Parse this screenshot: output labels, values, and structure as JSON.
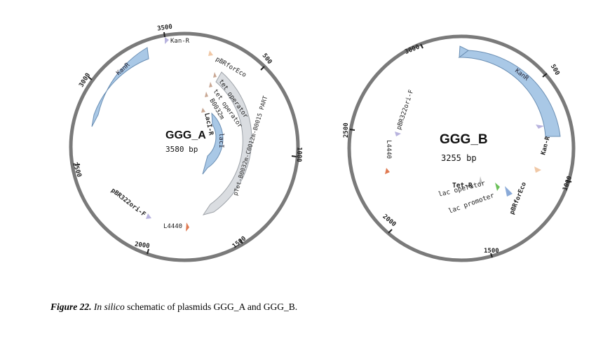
{
  "plasmid_a": {
    "name": "GGG_A",
    "size": "3580 bp",
    "ticks": [
      "3500",
      "500",
      "1000",
      "1500",
      "2000",
      "2500",
      "3000"
    ],
    "features": {
      "kan_r_primer": "Kan-R",
      "kanr": "KanR",
      "pbrforeco": "pBRforEco",
      "tet_operator_1": "tet operator",
      "tet_operator_2": "tet operator",
      "b0032m": "B0032m",
      "laci_r": "LacI-R",
      "laci": "lacI",
      "insert": "pTet-B0032m-C0012m-B0015 PART",
      "pbr322ori_f": "pBR322ori-F",
      "l4440": "L4440"
    }
  },
  "plasmid_b": {
    "name": "GGG_B",
    "size": "3255 bp",
    "ticks": [
      "3000",
      "500",
      "1000",
      "1500",
      "2000",
      "2500"
    ],
    "features": {
      "kanr": "KanR",
      "kan_r_primer": "Kan-R",
      "pbrforeco": "pBRforEco",
      "pbr322ori_f": "pBR322ori-F",
      "l4440": "L4440",
      "tet_r": "Tet-R",
      "lac_operator": "lac operator",
      "lac_promoter": "lac promoter"
    }
  },
  "caption": {
    "label": "Figure 22.",
    "italic": "In silico",
    "text": " schematic of plasmids GGG_A and GGG_B."
  },
  "colors": {
    "ring": "#7a7a7a",
    "kanr": "#a9c8e6",
    "laci": "#a9c8e6",
    "insert": "#dadde1",
    "primer_purple": "#b8b3de",
    "l4440": "#e07a52",
    "pbrforeco": "#f0c8a6",
    "tet_operator": "#c9a894",
    "lac_operator": "#6cc05a",
    "lac_promoter": "#8aaad8",
    "tet_r": "#bfbfbf"
  }
}
